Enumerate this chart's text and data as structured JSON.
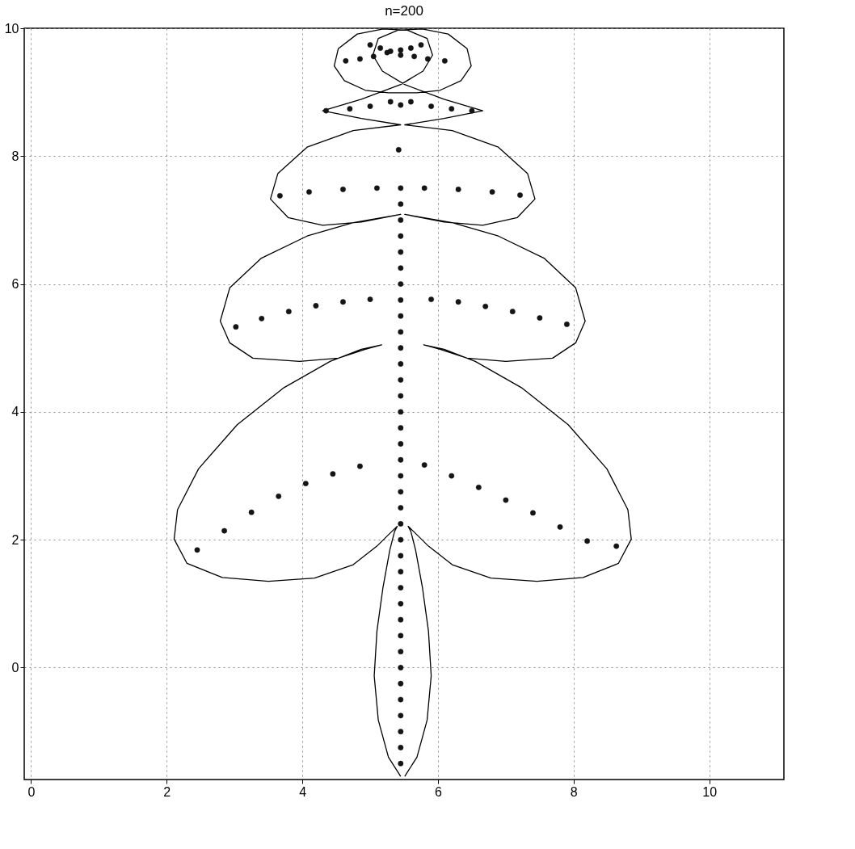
{
  "chart_data": {
    "type": "line",
    "title": "n=200",
    "xlim": [
      -0.1,
      11.1
    ],
    "ylim": [
      -1.75,
      10
    ],
    "xticks": [
      0,
      2,
      4,
      6,
      8,
      10
    ],
    "yticks": [
      0,
      2,
      4,
      6,
      8,
      10
    ],
    "grid": true,
    "series": [
      {
        "color": "#000000",
        "marker": "none",
        "line_style": "solid",
        "x": [
          5.45,
          5.27,
          5.12,
          5.06,
          5.1,
          5.19,
          5.29,
          5.36,
          5.4,
          5.32,
          5.1,
          4.75,
          4.18,
          3.5,
          2.82,
          2.3,
          2.11,
          2.16,
          2.47,
          3.04,
          3.73,
          4.41,
          4.87,
          5.17,
          4.93,
          4.53,
          3.96,
          3.27,
          2.93,
          2.79,
          2.93,
          3.39,
          4.07,
          4.75,
          5.45,
          4.87,
          4.3,
          3.79,
          3.53,
          3.64,
          4.07,
          4.75,
          5.45,
          4.87,
          4.3,
          4.87,
          5.45,
          5.78,
          5.92,
          5.84,
          5.55,
          5.19,
          4.81,
          4.53,
          4.47,
          4.62,
          4.93,
          5.27,
          5.69,
          6.03,
          6.34,
          6.49,
          6.43,
          6.15,
          5.77,
          5.41,
          5.12,
          5.04,
          5.18,
          5.51,
          6.09,
          6.66,
          6.09,
          5.51,
          6.21,
          6.89,
          7.32,
          7.43,
          7.17,
          6.66,
          6.09,
          5.51,
          6.21,
          6.89,
          7.57,
          8.03,
          8.17,
          8.03,
          7.69,
          7.0,
          6.43,
          6.03,
          5.79,
          6.09,
          6.55,
          7.23,
          7.92,
          8.49,
          8.8,
          8.85,
          8.66,
          8.14,
          7.46,
          6.78,
          6.21,
          5.86,
          5.64,
          5.56,
          5.6,
          5.67,
          5.77,
          5.86,
          5.9,
          5.84,
          5.69,
          5.51
        ],
        "values": [
          -1.7,
          -1.4,
          -0.82,
          -0.13,
          0.57,
          1.26,
          1.84,
          2.13,
          2.21,
          2.13,
          1.9,
          1.61,
          1.4,
          1.35,
          1.41,
          1.63,
          2.01,
          2.47,
          3.11,
          3.8,
          4.38,
          4.79,
          4.98,
          5.05,
          4.98,
          4.84,
          4.79,
          4.84,
          5.08,
          5.42,
          5.94,
          6.4,
          6.75,
          6.96,
          7.09,
          6.97,
          6.92,
          7.04,
          7.33,
          7.73,
          8.14,
          8.4,
          8.49,
          8.59,
          8.71,
          8.89,
          9.12,
          9.33,
          9.58,
          9.84,
          9.97,
          9.99,
          9.91,
          9.68,
          9.41,
          9.18,
          9.03,
          8.99,
          8.99,
          9.03,
          9.18,
          9.41,
          9.68,
          9.91,
          9.99,
          9.97,
          9.84,
          9.58,
          9.33,
          9.12,
          8.89,
          8.71,
          8.59,
          8.49,
          8.4,
          8.14,
          7.73,
          7.33,
          7.04,
          6.92,
          6.97,
          7.09,
          6.96,
          6.75,
          6.4,
          5.94,
          5.42,
          5.08,
          4.84,
          4.79,
          4.84,
          4.98,
          5.05,
          4.98,
          4.79,
          4.38,
          3.8,
          3.11,
          2.47,
          2.01,
          1.63,
          1.41,
          1.35,
          1.4,
          1.61,
          1.9,
          2.13,
          2.21,
          2.13,
          1.84,
          1.26,
          0.57,
          -0.13,
          -0.82,
          -1.4,
          -1.7
        ]
      },
      {
        "type": "scatter",
        "color": "#141414",
        "marker": "circle",
        "x": [
          5.45,
          5.45,
          5.45,
          5.45,
          5.45,
          5.45,
          5.45,
          5.45,
          5.45,
          5.45,
          5.45,
          5.45,
          5.45,
          5.45,
          5.45,
          5.45,
          5.45,
          5.45,
          5.45,
          5.45,
          5.45,
          5.45,
          5.45,
          5.45,
          5.45,
          5.45,
          5.45,
          5.45,
          5.45,
          5.45,
          5.45,
          5.45,
          5.45,
          5.45,
          5.45,
          5.45,
          5.45,
          2.45,
          2.85,
          3.25,
          3.65,
          4.05,
          4.45,
          4.85,
          5.8,
          6.2,
          6.6,
          7.0,
          7.4,
          7.8,
          8.2,
          8.63,
          3.02,
          3.4,
          3.8,
          4.2,
          4.6,
          5.0,
          5.9,
          6.3,
          6.7,
          7.1,
          7.5,
          7.9,
          3.67,
          4.1,
          4.6,
          5.1,
          5.8,
          6.3,
          6.8,
          7.21,
          5.42,
          4.35,
          4.7,
          5.0,
          5.3,
          5.45,
          5.6,
          5.9,
          6.2,
          6.5,
          4.64,
          4.85,
          5.05,
          5.25,
          5.45,
          5.65,
          5.85,
          6.1,
          5.0,
          5.15,
          5.3,
          5.45,
          5.6,
          5.75
        ],
        "values": [
          -1.5,
          -1.25,
          -1.0,
          -0.75,
          -0.5,
          -0.25,
          0.0,
          0.25,
          0.5,
          0.75,
          1.0,
          1.25,
          1.5,
          1.75,
          2.0,
          2.25,
          2.5,
          2.75,
          3.0,
          3.25,
          3.5,
          3.75,
          4.0,
          4.25,
          4.5,
          4.75,
          5.0,
          5.25,
          5.5,
          5.75,
          6.0,
          6.25,
          6.5,
          6.75,
          7.0,
          7.25,
          7.5,
          1.84,
          2.14,
          2.43,
          2.68,
          2.88,
          3.03,
          3.15,
          3.17,
          3.0,
          2.82,
          2.62,
          2.42,
          2.2,
          1.98,
          1.9,
          5.33,
          5.46,
          5.57,
          5.66,
          5.72,
          5.76,
          5.76,
          5.72,
          5.65,
          5.57,
          5.47,
          5.37,
          7.38,
          7.44,
          7.48,
          7.5,
          7.5,
          7.48,
          7.44,
          7.39,
          8.1,
          8.71,
          8.74,
          8.78,
          8.85,
          8.8,
          8.85,
          8.78,
          8.74,
          8.71,
          9.49,
          9.52,
          9.56,
          9.62,
          9.58,
          9.56,
          9.52,
          9.49,
          9.74,
          9.69,
          9.64,
          9.66,
          9.69,
          9.74
        ]
      }
    ]
  }
}
